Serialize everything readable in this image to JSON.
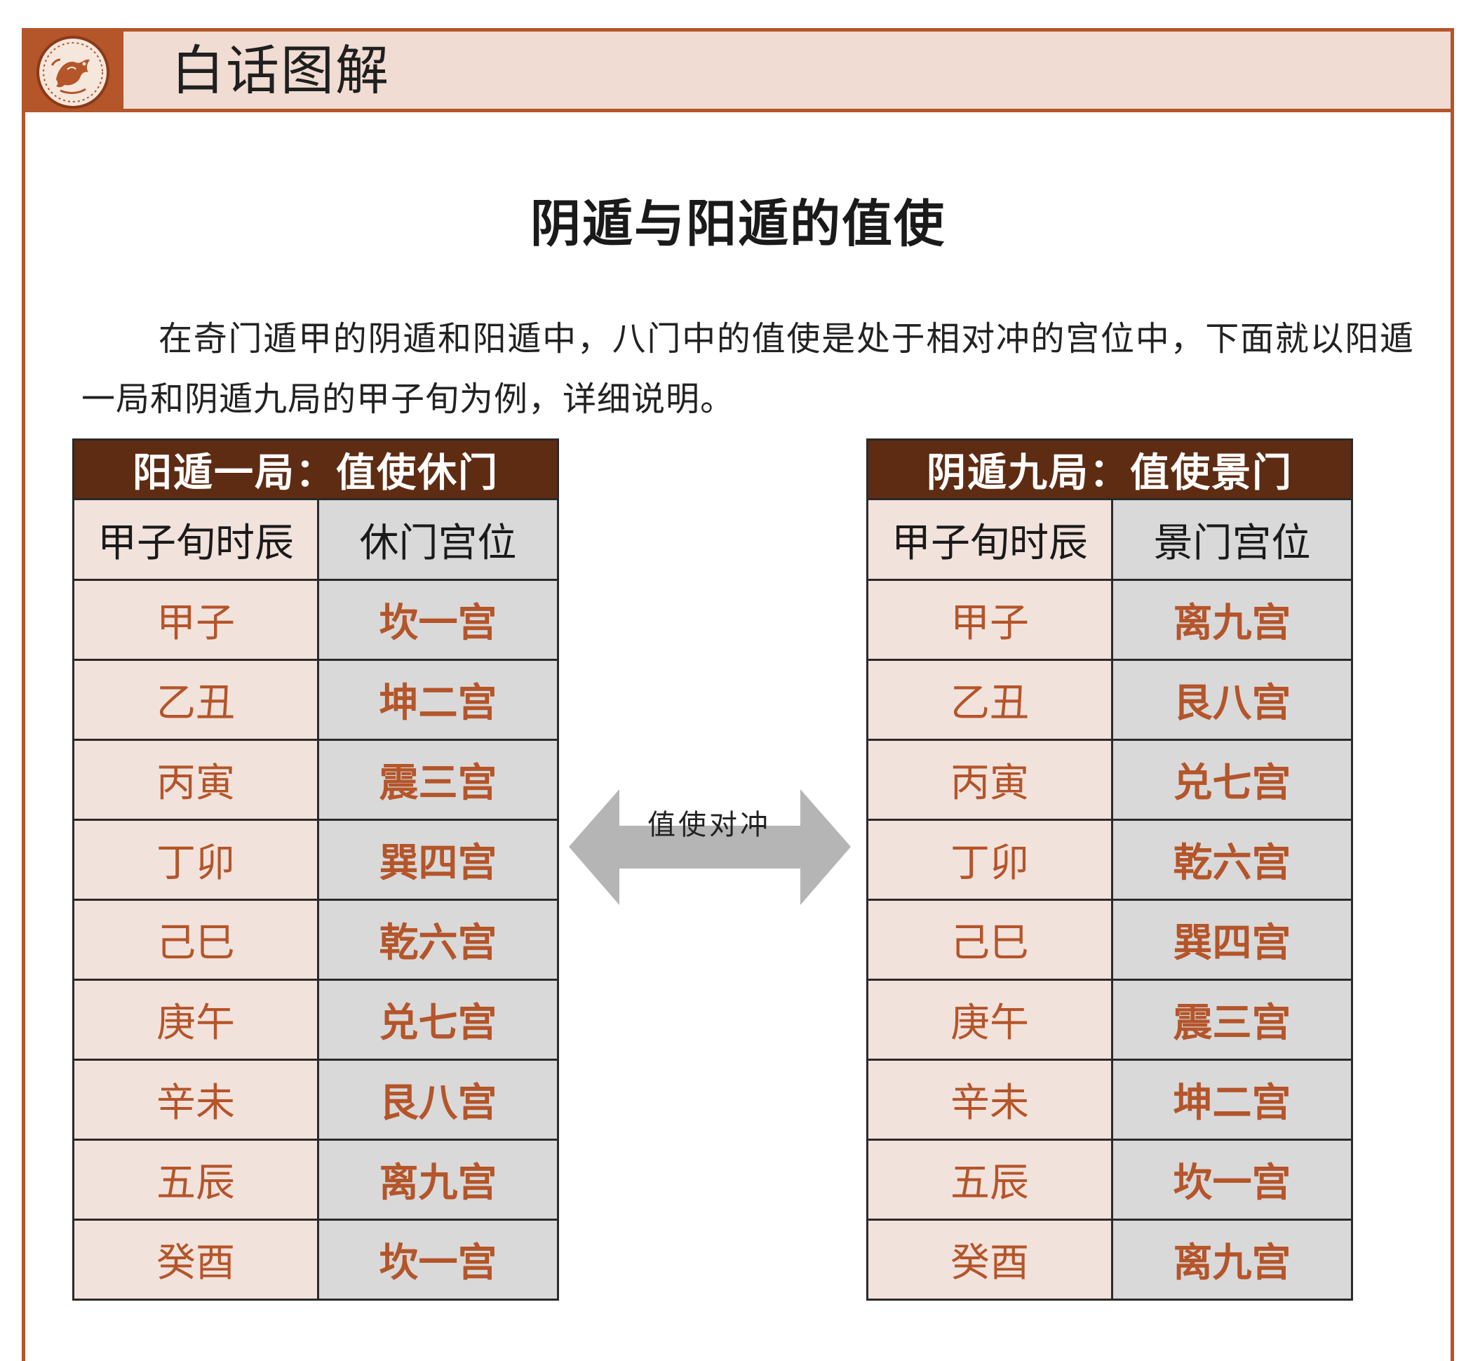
{
  "header": {
    "title": "白话图解",
    "emblem_icon": "dragon-medallion-icon"
  },
  "main_title": "阴遁与阳遁的值使",
  "intro": "在奇门遁甲的阴遁和阳遁中，八门中的值使是处于相对冲的宫位中，下面就以阳遁一局和阴遁九局的甲子旬为例，详细说明。",
  "arrow": {
    "label": "值使对冲",
    "icon": "double-arrow-icon"
  },
  "left_table": {
    "caption": "阳遁一局：值使休门",
    "headers": [
      "甲子旬时辰",
      "休门宫位"
    ],
    "rows": [
      [
        "甲子",
        "坎一宫"
      ],
      [
        "乙丑",
        "坤二宫"
      ],
      [
        "丙寅",
        "震三宫"
      ],
      [
        "丁卯",
        "巽四宫"
      ],
      [
        "己巳",
        "乾六宫"
      ],
      [
        "庚午",
        "兑七宫"
      ],
      [
        "辛未",
        "艮八宫"
      ],
      [
        "五辰",
        "离九宫"
      ],
      [
        "癸酉",
        "坎一宫"
      ]
    ]
  },
  "right_table": {
    "caption": "阴遁九局：值使景门",
    "headers": [
      "甲子旬时辰",
      "景门宫位"
    ],
    "rows": [
      [
        "甲子",
        "离九宫"
      ],
      [
        "乙丑",
        "艮八宫"
      ],
      [
        "丙寅",
        "兑七宫"
      ],
      [
        "丁卯",
        "乾六宫"
      ],
      [
        "己巳",
        "巽四宫"
      ],
      [
        "庚午",
        "震三宫"
      ],
      [
        "辛未",
        "坤二宫"
      ],
      [
        "五辰",
        "坎一宫"
      ],
      [
        "癸酉",
        "离九宫"
      ]
    ]
  },
  "colors": {
    "accent": "#b4552a",
    "caption_bg": "#5e2c13",
    "header_bg": "#f0dcd3",
    "cell_pink": "#f2e2dc",
    "cell_gray": "#d9d9d9",
    "arrow_gray": "#b5b5b5"
  }
}
